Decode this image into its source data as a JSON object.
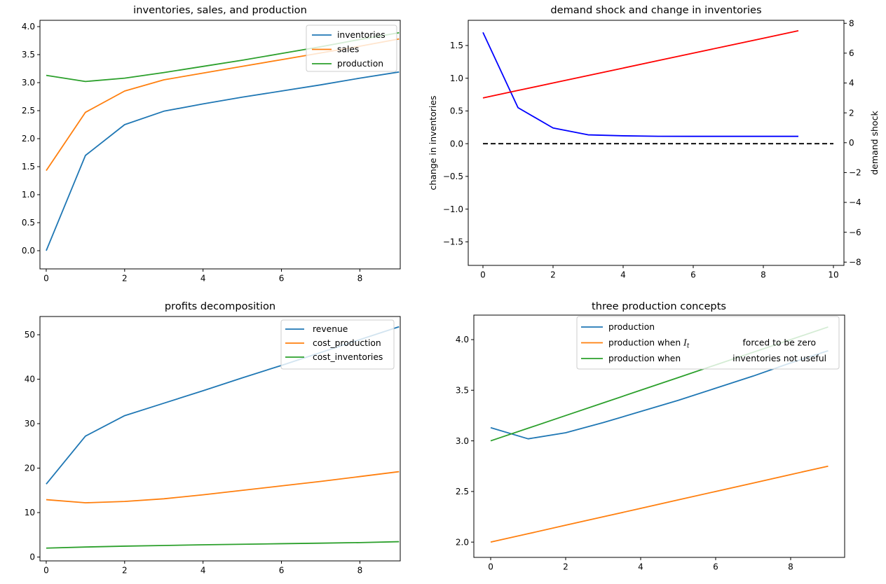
{
  "figure": {
    "background": "#ffffff"
  },
  "chart_data": [
    {
      "type": "line",
      "title": "inventories, sales, and production",
      "xlim": [
        -0.16,
        9.03
      ],
      "ylim": [
        -0.325,
        4.1125
      ],
      "xticks": {
        "values": [
          0,
          2,
          4,
          6,
          8
        ],
        "labels": [
          "0",
          "2",
          "4",
          "6",
          "8"
        ]
      },
      "yticks": {
        "values": [
          0.0,
          0.5,
          1.0,
          1.5,
          2.0,
          2.5,
          3.0,
          3.5,
          4.0
        ],
        "labels": [
          "0.0",
          "0.5",
          "1.0",
          "1.5",
          "2.0",
          "2.5",
          "3.0",
          "3.5",
          "4.0"
        ]
      },
      "x": [
        0,
        1,
        2,
        3,
        4,
        5,
        6,
        7,
        8,
        9
      ],
      "grid": false,
      "series": [
        {
          "name": "inventories",
          "color": "#1f77b4",
          "values": [
            0.0,
            1.7,
            2.25,
            2.49,
            2.62,
            2.74,
            2.85,
            2.96,
            3.08,
            3.19
          ]
        },
        {
          "name": "sales",
          "color": "#ff7f0e",
          "values": [
            1.43,
            2.47,
            2.85,
            3.05,
            3.17,
            3.29,
            3.41,
            3.53,
            3.65,
            3.78
          ]
        },
        {
          "name": "production",
          "color": "#2ca02c",
          "values": [
            3.13,
            3.02,
            3.08,
            3.18,
            3.29,
            3.4,
            3.52,
            3.64,
            3.77,
            3.89
          ]
        }
      ],
      "legend": {
        "position": "upper right",
        "entries": [
          {
            "color": "#1f77b4",
            "tokens": [
              {
                "t": "inventories"
              }
            ]
          },
          {
            "color": "#ff7f0e",
            "tokens": [
              {
                "t": "sales"
              }
            ]
          },
          {
            "color": "#2ca02c",
            "tokens": [
              {
                "t": "production"
              }
            ]
          }
        ]
      }
    },
    {
      "type": "line",
      "title": "demand shock and change in inventories",
      "xlim": [
        -0.42,
        10.3
      ],
      "ylim": [
        -1.86,
        1.885
      ],
      "ylim_right": [
        -8.22,
        8.2
      ],
      "xticks": {
        "values": [
          0,
          2,
          4,
          6,
          8,
          10
        ],
        "labels": [
          "0",
          "2",
          "4",
          "6",
          "8",
          "10"
        ]
      },
      "yticks": {
        "values": [
          -1.5,
          -1.0,
          -0.5,
          0.0,
          0.5,
          1.0,
          1.5
        ],
        "labels": [
          "−1.5",
          "−1.0",
          "−0.5",
          "0.0",
          "0.5",
          "1.0",
          "1.5"
        ]
      },
      "yticks_right": {
        "values": [
          -8,
          -6,
          -4,
          -2,
          0,
          2,
          4,
          6,
          8
        ],
        "labels": [
          "−8",
          "−6",
          "−4",
          "−2",
          "0",
          "2",
          "4",
          "6",
          "8"
        ]
      },
      "axes_labels": {
        "left": {
          "text": "change in inventories",
          "color": "#0000ff"
        },
        "right": {
          "text": "demand shock",
          "color": "#ff0000"
        }
      },
      "grid": false,
      "series": [
        {
          "name": "change in inventories",
          "color": "#0000ff",
          "axis": "left",
          "x": [
            0,
            1,
            2,
            3,
            4,
            5,
            6,
            7,
            8,
            9
          ],
          "values": [
            1.7,
            0.55,
            0.24,
            0.135,
            0.12,
            0.113,
            0.112,
            0.112,
            0.112,
            0.112
          ]
        },
        {
          "name": "demand shock",
          "color": "#ff0000",
          "axis": "right",
          "x": [
            0,
            1,
            2,
            3,
            4,
            5,
            6,
            7,
            8,
            9
          ],
          "values": [
            3.0,
            3.5,
            4.0,
            4.5,
            5.0,
            5.5,
            6.0,
            6.5,
            7.0,
            7.5
          ]
        },
        {
          "name": "zero line",
          "color": "#000000",
          "axis": "left",
          "dashed": true,
          "x": [
            0,
            10
          ],
          "values": [
            0,
            0
          ]
        }
      ]
    },
    {
      "type": "line",
      "title": "profits decomposition",
      "xlim": [
        -0.16,
        9.03
      ],
      "ylim": [
        -0.87,
        54.1
      ],
      "xticks": {
        "values": [
          0,
          2,
          4,
          6,
          8
        ],
        "labels": [
          "0",
          "2",
          "4",
          "6",
          "8"
        ]
      },
      "yticks": {
        "values": [
          0,
          10,
          20,
          30,
          40,
          50
        ],
        "labels": [
          "0",
          "10",
          "20",
          "30",
          "40",
          "50"
        ]
      },
      "x": [
        0,
        1,
        2,
        3,
        4,
        5,
        6,
        7,
        8,
        9
      ],
      "grid": false,
      "series": [
        {
          "name": "revenue",
          "color": "#1f77b4",
          "values": [
            16.4,
            27.2,
            31.8,
            34.6,
            37.4,
            40.3,
            43.1,
            46.0,
            48.9,
            51.8
          ]
        },
        {
          "name": "cost_production",
          "color": "#ff7f0e",
          "values": [
            12.9,
            12.2,
            12.5,
            13.1,
            14.0,
            15.0,
            16.0,
            17.0,
            18.1,
            19.2
          ]
        },
        {
          "name": "cost_inventories",
          "color": "#2ca02c",
          "values": [
            2.0,
            2.25,
            2.45,
            2.6,
            2.75,
            2.87,
            3.0,
            3.12,
            3.25,
            3.45
          ]
        }
      ],
      "legend": {
        "position": "upper right",
        "entries": [
          {
            "color": "#1f77b4",
            "tokens": [
              {
                "t": "revenue"
              }
            ]
          },
          {
            "color": "#ff7f0e",
            "tokens": [
              {
                "t": "cost_production"
              }
            ]
          },
          {
            "color": "#2ca02c",
            "tokens": [
              {
                "t": "cost_inventories"
              }
            ]
          }
        ]
      }
    },
    {
      "type": "line",
      "title": "three production concepts",
      "xlim": [
        -0.449,
        9.44
      ],
      "ylim": [
        1.849,
        4.242
      ],
      "xticks": {
        "values": [
          0,
          2,
          4,
          6,
          8
        ],
        "labels": [
          "0",
          "2",
          "4",
          "6",
          "8"
        ]
      },
      "yticks": {
        "values": [
          2.0,
          2.5,
          3.0,
          3.5,
          4.0
        ],
        "labels": [
          "2.0",
          "2.5",
          "3.0",
          "3.5",
          "4.0"
        ]
      },
      "x": [
        0,
        1,
        2,
        3,
        4,
        5,
        6,
        7,
        8,
        9
      ],
      "grid": false,
      "series": [
        {
          "name": "production",
          "color": "#1f77b4",
          "values": [
            3.13,
            3.02,
            3.08,
            3.18,
            3.29,
            3.4,
            3.52,
            3.64,
            3.77,
            3.89
          ]
        },
        {
          "name": "production when I_t forced to be zero",
          "color": "#ff7f0e",
          "values": [
            2.0,
            2.083,
            2.167,
            2.25,
            2.333,
            2.417,
            2.5,
            2.583,
            2.667,
            2.75
          ]
        },
        {
          "name": "production when inventories not useful",
          "color": "#2ca02c",
          "values": [
            3.0,
            3.125,
            3.25,
            3.375,
            3.5,
            3.625,
            3.75,
            3.875,
            4.0,
            4.125
          ]
        }
      ],
      "legend": {
        "position": "upper right",
        "entries": [
          {
            "color": "#1f77b4",
            "tokens": [
              {
                "t": "production"
              }
            ]
          },
          {
            "color": "#ff7f0e",
            "tokens": [
              {
                "t": "production when "
              },
              {
                "math": "I",
                "sub": "t"
              },
              {
                "gap": 76
              },
              {
                "t": "forced to be zero"
              }
            ]
          },
          {
            "color": "#2ca02c",
            "tokens": [
              {
                "t": "production when"
              },
              {
                "gap": 74
              },
              {
                "t": "inventories not useful"
              }
            ]
          }
        ]
      }
    }
  ]
}
